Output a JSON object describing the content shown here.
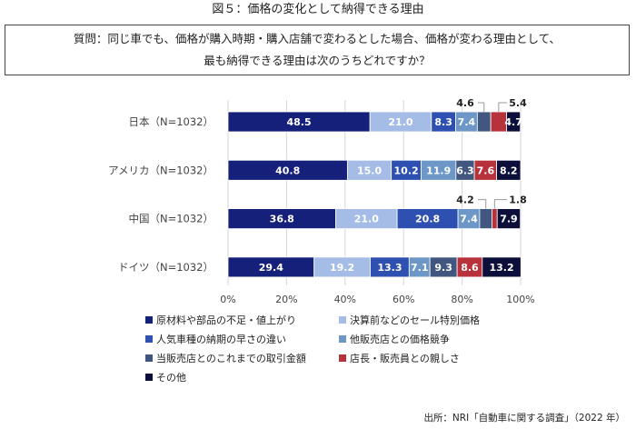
{
  "figure_title": "図５：価格の変化として納得できる理由",
  "question": {
    "line1": "質問：同じ車でも、価格が購入時期・購入店舗で変わるとした場合、価格が変わる理由として、",
    "line2": "最も納得できる理由は次のうちどれですか？"
  },
  "source": "出所：NRI「自動車に関する調査」（2022 年）",
  "chart_data": {
    "type": "bar",
    "orientation": "horizontal",
    "stacked": "percent",
    "categories": [
      "日本（N=1032）",
      "アメリカ（N=1032）",
      "中国（N=1032）",
      "ドイツ（N=1032）"
    ],
    "series": [
      {
        "name": "原材料や部品の不足・値上がり",
        "color": "#14207a",
        "label_color": "#ffffff",
        "values": [
          48.5,
          40.8,
          36.8,
          29.4
        ]
      },
      {
        "name": "決算前などのセール特別価格",
        "color": "#a4bce6",
        "label_color": "#ffffff",
        "values": [
          21.0,
          15.0,
          21.0,
          19.2
        ]
      },
      {
        "name": "人気車種の納期の早さの違い",
        "color": "#2e50b0",
        "label_color": "#ffffff",
        "values": [
          8.3,
          10.2,
          20.8,
          13.3
        ]
      },
      {
        "name": "他販売店との価格競争",
        "color": "#6c97c6",
        "label_color": "#ffffff",
        "values": [
          7.4,
          11.9,
          7.4,
          7.1
        ]
      },
      {
        "name": "当販売店とのこれまでの取引金額",
        "color": "#42577f",
        "label_color": "#ffffff",
        "values": [
          4.6,
          6.3,
          4.2,
          9.3
        ]
      },
      {
        "name": "店長・販売員との親しさ",
        "color": "#b8323c",
        "label_color": "#ffffff",
        "values": [
          5.4,
          7.6,
          1.8,
          8.6
        ]
      },
      {
        "name": "その他",
        "color": "#0b0f3a",
        "label_color": "#ffffff",
        "values": [
          4.7,
          8.2,
          7.9,
          13.2
        ]
      }
    ],
    "xlim": [
      0,
      100
    ],
    "x_ticks": [
      "0%",
      "20%",
      "40%",
      "60%",
      "80%",
      "100%"
    ],
    "grid": true,
    "legend_position": "bottom-left",
    "callouts": [
      {
        "row": 0,
        "series": 4,
        "text": "4.6"
      },
      {
        "row": 0,
        "series": 5,
        "text": "5.4"
      },
      {
        "row": 2,
        "series": 4,
        "text": "4.2"
      },
      {
        "row": 2,
        "series": 5,
        "text": "1.8"
      }
    ]
  }
}
